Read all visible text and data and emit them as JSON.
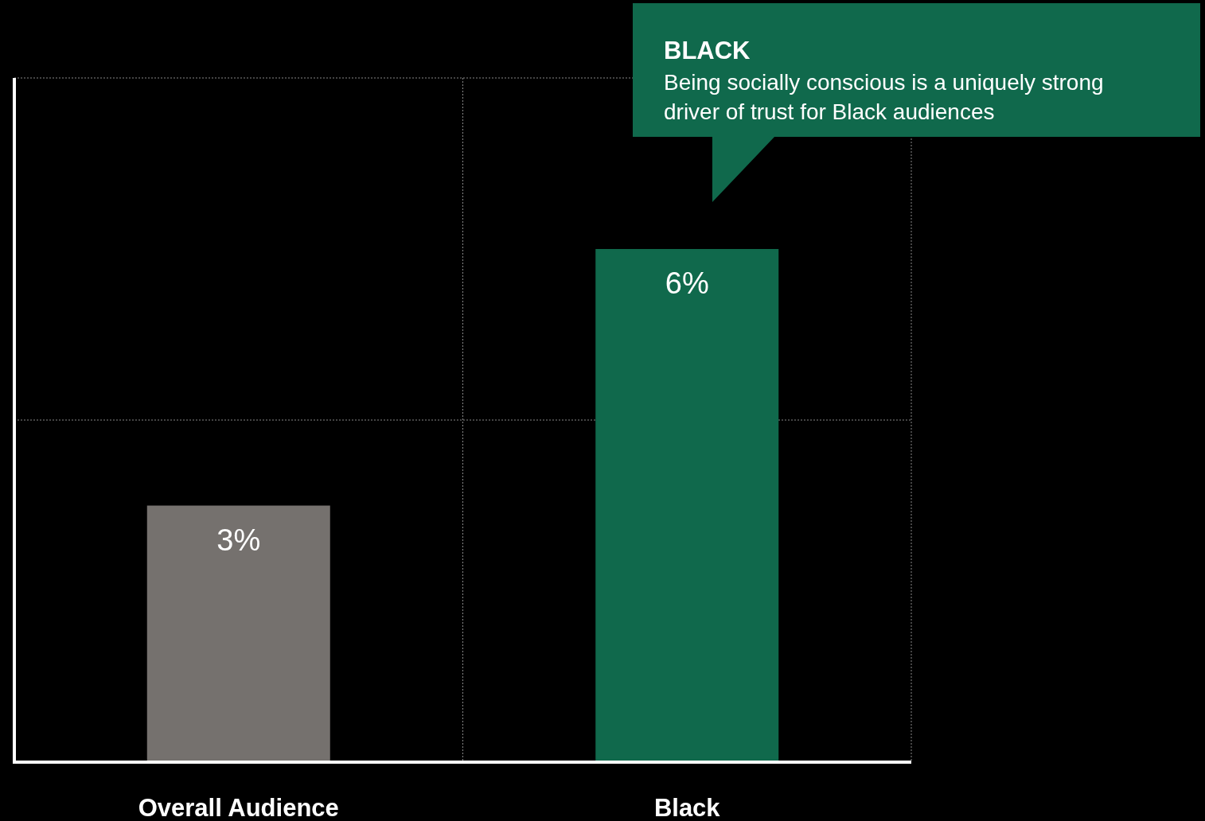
{
  "chart_data": {
    "type": "bar",
    "categories": [
      "Overall Audience",
      "Black"
    ],
    "values": [
      3,
      6
    ],
    "colors": [
      "#75716e",
      "#10694c"
    ],
    "ylim": [
      0,
      8
    ],
    "yticks": [
      {
        "value": 0,
        "label": null
      },
      {
        "value": 4,
        "label": null
      },
      {
        "value": 8,
        "label": null
      }
    ],
    "tick_labels": "x",
    "grid": true,
    "data_labels": true,
    "value_labels": [
      "3%",
      "6%"
    ],
    "annotations": [
      "BLACK",
      "Being socially conscious is a uniquely strong driver of trust for Black audiences"
    ]
  }
}
